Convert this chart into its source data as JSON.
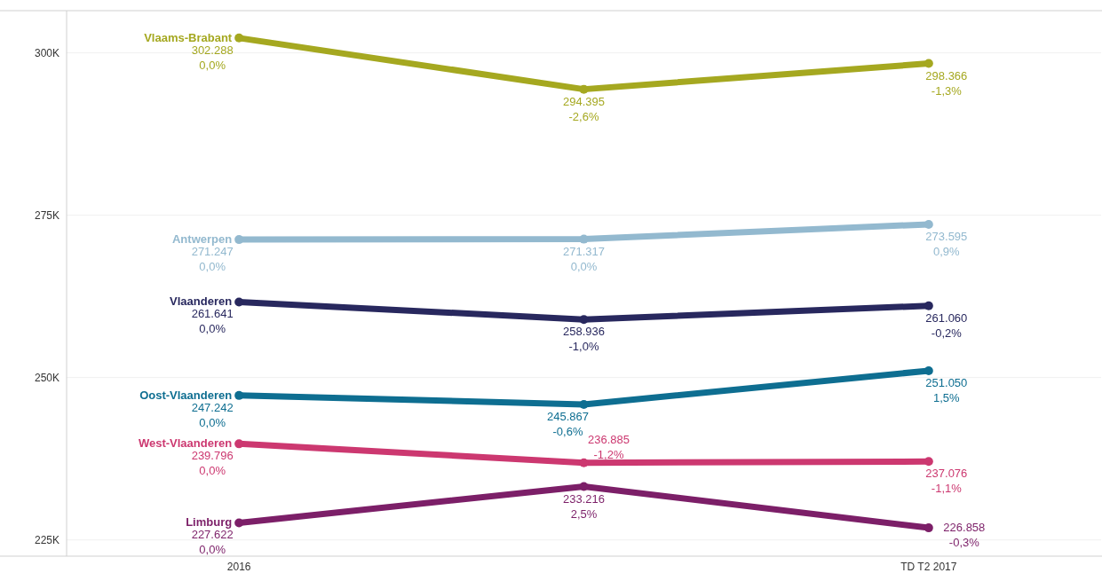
{
  "chart_data": {
    "type": "line",
    "categories": [
      "2016",
      null,
      "TD T2 2017"
    ],
    "series": [
      {
        "name": "Vlaams-Brabant",
        "color": "#a5a820",
        "values": [
          302288,
          294395,
          298366
        ],
        "value_labels": [
          "302.288\n0,0%",
          "294.395\n-2,6%",
          "298.366\n-1,3%"
        ]
      },
      {
        "name": "Antwerpen",
        "color": "#93b9cf",
        "values": [
          271247,
          271317,
          273595
        ],
        "value_labels": [
          "271.247\n0,0%",
          "271.317\n0,0%",
          "273.595\n0,9%"
        ]
      },
      {
        "name": "Vlaanderen",
        "color": "#28285e",
        "values": [
          261641,
          258936,
          261060
        ],
        "value_labels": [
          "261.641\n0,0%",
          "258.936\n-1,0%",
          "261.060\n-0,2%"
        ]
      },
      {
        "name": "Oost-Vlaanderen",
        "color": "#0e6e91",
        "values": [
          247242,
          245867,
          251050
        ],
        "value_labels": [
          "247.242\n0,0%",
          "245.867\n-0,6%",
          "251.050\n1,5%"
        ]
      },
      {
        "name": "West-Vlaanderen",
        "color": "#cc3870",
        "values": [
          239796,
          236885,
          237076
        ],
        "value_labels": [
          "239.796\n0,0%",
          "236.885\n-1,2%",
          "237.076\n-1,1%"
        ]
      },
      {
        "name": "Limburg",
        "color": "#7c1f68",
        "values": [
          227622,
          233216,
          226858
        ],
        "value_labels": [
          "227.622\n0,0%",
          "233.216\n2,5%",
          "226.858\n-0,3%"
        ]
      }
    ],
    "ylim": [
      222500,
      306500
    ],
    "yticks": [
      {
        "value": 225000,
        "label": "225K"
      },
      {
        "value": 250000,
        "label": "250K"
      },
      {
        "value": 275000,
        "label": "275K"
      },
      {
        "value": 300000,
        "label": "300K"
      }
    ],
    "grid": "y",
    "marker": "circle",
    "line_style": "solid"
  }
}
